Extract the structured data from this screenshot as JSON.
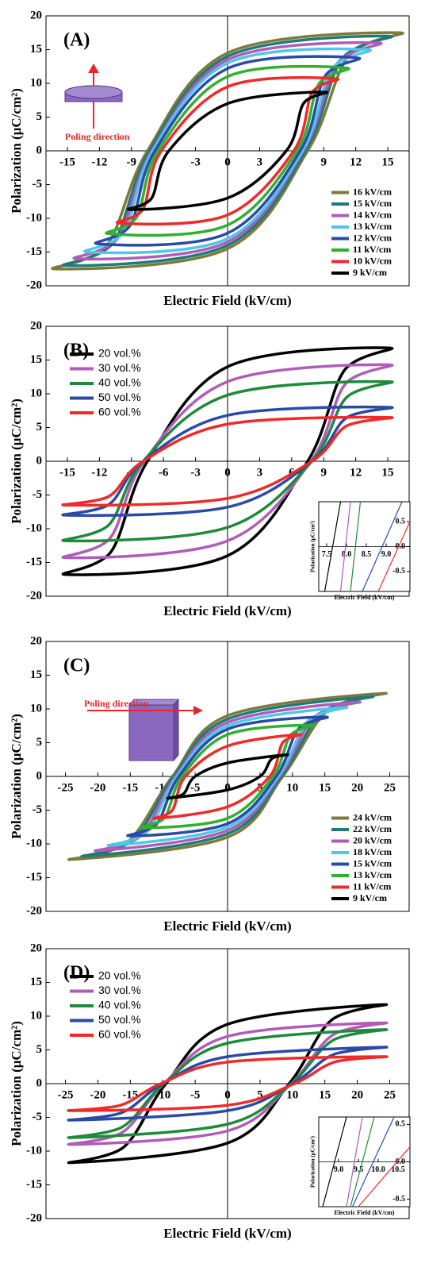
{
  "chart_data": [
    {
      "type": "line",
      "panel_label": "(A)",
      "xlabel": "Electric Field (kV/cm)",
      "ylabel": "Polarization (μC/cm²)",
      "annotation": "Poling direction",
      "legend": "lower right",
      "xlim": [
        -17,
        17
      ],
      "ylim": [
        -20,
        20
      ],
      "xticks": [
        -15,
        -12,
        -9,
        -3,
        0,
        3,
        9,
        12,
        15
      ],
      "yticks": [
        -20,
        -15,
        -10,
        -5,
        0,
        5,
        10,
        15,
        20
      ],
      "series": [
        {
          "name": "16 kV/cm",
          "color": "#7d7a3a",
          "x": [
            -16,
            0,
            7.5,
            11.3,
            16,
            0,
            -7.5,
            -11.3
          ],
          "values": [
            -17.5,
            -14.5,
            0,
            14,
            17.5,
            14.5,
            0,
            -14
          ]
        },
        {
          "name": "15 kV/cm",
          "color": "#1f7a7a",
          "x": [
            -15,
            0,
            7.3,
            10.7,
            15,
            0,
            -7.3,
            -10.7
          ],
          "values": [
            -17,
            -14,
            0,
            13.6,
            17,
            14,
            0,
            -13.6
          ]
        },
        {
          "name": "14 kV/cm",
          "color": "#b05cb8",
          "x": [
            -14,
            0,
            7.1,
            10.2,
            14,
            0,
            -7.1,
            -10.2
          ],
          "values": [
            -16,
            -13.5,
            0,
            12.8,
            16,
            13.5,
            0,
            -12.8
          ]
        },
        {
          "name": "13 kV/cm",
          "color": "#4fc8e8",
          "x": [
            -13,
            0,
            7,
            9.7,
            13,
            0,
            -7,
            -9.7
          ],
          "values": [
            -15,
            -13,
            0,
            12,
            15,
            13,
            0,
            -12
          ]
        },
        {
          "name": "12 kV/cm",
          "color": "#2a4aa8",
          "x": [
            -12,
            0,
            6.8,
            9.1,
            12,
            0,
            -6.8,
            -9.1
          ],
          "values": [
            -13.8,
            -12.2,
            0,
            11,
            13.8,
            12.2,
            0,
            -11
          ]
        },
        {
          "name": "11 kV/cm",
          "color": "#2fb02f",
          "x": [
            -11,
            0,
            6.5,
            8.5,
            11,
            0,
            -6.5,
            -8.5
          ],
          "values": [
            -12.3,
            -11,
            0,
            9.8,
            12.3,
            11,
            0,
            -9.8
          ]
        },
        {
          "name": "10 kV/cm",
          "color": "#f02a2a",
          "x": [
            -10,
            0,
            6.2,
            7.9,
            10,
            0,
            -6.2,
            -7.9
          ],
          "values": [
            -10.7,
            -9.5,
            0,
            8.6,
            10.7,
            9.5,
            0,
            -8.6
          ]
        },
        {
          "name": "9 kV/cm",
          "color": "#000000",
          "x": [
            -9,
            0,
            5.5,
            7.1,
            9,
            0,
            -5.5,
            -7.1
          ],
          "values": [
            -8.7,
            -7,
            0,
            7,
            8.7,
            7,
            0,
            -7
          ]
        }
      ]
    },
    {
      "type": "line",
      "panel_label": "(B)",
      "xlabel": "Electric Field (kV/cm)",
      "ylabel": "Polarization (μC/cm²)",
      "legend": "upper left",
      "xlim": [
        -17,
        17
      ],
      "ylim": [
        -20,
        20
      ],
      "xticks": [
        -15,
        -12,
        -9,
        -6,
        -3,
        0,
        3,
        6,
        9,
        12,
        15
      ],
      "yticks": [
        -20,
        -15,
        -10,
        -5,
        0,
        5,
        10,
        15,
        20
      ],
      "series": [
        {
          "name": "20 vol.%",
          "color": "#000000",
          "x": [
            -15,
            0,
            7.5,
            10.9,
            15,
            0,
            -7.5,
            -10.9
          ],
          "values": [
            -16.8,
            -14,
            0,
            13.4,
            16.8,
            14,
            0,
            -13.4
          ]
        },
        {
          "name": "30 vol.%",
          "color": "#b05cb8",
          "x": [
            -15,
            0,
            7.8,
            11,
            15,
            0,
            -7.8,
            -11
          ],
          "values": [
            -14.3,
            -11.8,
            0,
            11.4,
            14.3,
            11.8,
            0,
            -11.4
          ]
        },
        {
          "name": "40 vol.%",
          "color": "#1f8a3a",
          "x": [
            -15,
            0,
            7.9,
            11.1,
            15,
            0,
            -7.9,
            -11.1
          ],
          "values": [
            -11.8,
            -9.8,
            0,
            9.4,
            11.8,
            9.8,
            0,
            -9.4
          ]
        },
        {
          "name": "50 vol.%",
          "color": "#2a4aa8",
          "x": [
            -15,
            0,
            7.9,
            11.1,
            15,
            0,
            -7.9,
            -11.1
          ],
          "values": [
            -8,
            -6.8,
            0,
            6.4,
            8,
            6.8,
            0,
            -6.4
          ]
        },
        {
          "name": "60 vol.%",
          "color": "#f02a2a",
          "x": [
            -15,
            0,
            7.9,
            11.1,
            15,
            0,
            -7.9,
            -11.1
          ],
          "values": [
            -6.5,
            -5.5,
            0,
            5.2,
            6.5,
            5.5,
            0,
            -5.2
          ]
        }
      ],
      "inset": {
        "xlabel": "Electric Field (kV/cm)",
        "ylabel": "Polarization (μC/cm²)",
        "xlim": [
          7.3,
          9.6
        ],
        "ylim": [
          -0.9,
          0.9
        ],
        "xticks": [
          7.5,
          {
            "value": 8,
            "label": "8.0"
          },
          8.5,
          {
            "value": 9,
            "label": "9.0"
          }
        ],
        "yticks": [
          -0.5,
          {
            "value": 0,
            "label": "0.0"
          },
          0.5
        ],
        "series": [
          {
            "color": "#000000",
            "x": [
              7.45,
              7.85
            ],
            "values": [
              -0.9,
              0.9
            ]
          },
          {
            "color": "#b05cb8",
            "x": [
              7.85,
              8.1
            ],
            "values": [
              -0.9,
              0.9
            ]
          },
          {
            "color": "#1f8a3a",
            "x": [
              8.1,
              8.35
            ],
            "values": [
              -0.9,
              0.9
            ]
          },
          {
            "color": "#2a4aa8",
            "x": [
              8.4,
              9.4
            ],
            "values": [
              -0.9,
              0.9
            ]
          },
          {
            "color": "#f02a2a",
            "x": [
              8.8,
              9.6
            ],
            "values": [
              -0.9,
              0.5
            ]
          }
        ]
      }
    },
    {
      "type": "line",
      "panel_label": "(C)",
      "xlabel": "Electric Field (kV/cm)",
      "ylabel": "Polarization (μC/cm²)",
      "annotation": "Poling direction",
      "legend": "lower right",
      "xlim": [
        -28,
        28
      ],
      "ylim": [
        -20,
        20
      ],
      "xticks": [
        -25,
        -20,
        -15,
        -10,
        -5,
        0,
        5,
        10,
        15,
        20,
        25
      ],
      "yticks": [
        -20,
        -15,
        -10,
        -5,
        0,
        5,
        10,
        15,
        20
      ],
      "series": [
        {
          "name": "24 kV/cm",
          "color": "#7d7a3a",
          "x": [
            -24,
            0,
            8.5,
            15.5,
            24,
            0,
            -8.5,
            -15.5
          ],
          "values": [
            -12.3,
            -9,
            0,
            9.8,
            12.3,
            9,
            0,
            -9.8
          ]
        },
        {
          "name": "22 kV/cm",
          "color": "#1f7a7a",
          "x": [
            -22,
            0,
            8.3,
            14.5,
            22,
            0,
            -8.3,
            -14.5
          ],
          "values": [
            -11.8,
            -8.5,
            0,
            9.4,
            11.8,
            8.5,
            0,
            -9.4
          ]
        },
        {
          "name": "20 kV/cm",
          "color": "#b05cb8",
          "x": [
            -20,
            0,
            8,
            13.4,
            20,
            0,
            -8,
            -13.4
          ],
          "values": [
            -11,
            -8,
            0,
            8.8,
            11,
            8,
            0,
            -8.8
          ]
        },
        {
          "name": "18 kV/cm",
          "color": "#4fc8e8",
          "x": [
            -18,
            0,
            7.8,
            12.4,
            18,
            0,
            -7.8,
            -12.4
          ],
          "values": [
            -10.2,
            -7.5,
            0,
            8.2,
            10.2,
            7.5,
            0,
            -8.2
          ]
        },
        {
          "name": "15 kV/cm",
          "color": "#2a4aa8",
          "x": [
            -15,
            0,
            7.5,
            10.9,
            15,
            0,
            -7.5,
            -10.9
          ],
          "values": [
            -8.8,
            -7,
            0,
            7,
            8.8,
            7,
            0,
            -7
          ]
        },
        {
          "name": "13 kV/cm",
          "color": "#2fb02f",
          "x": [
            -13,
            0,
            7,
            9.7,
            13,
            0,
            -7,
            -9.7
          ],
          "values": [
            -7.6,
            -6.2,
            0,
            6.1,
            7.6,
            6.2,
            0,
            -6.1
          ]
        },
        {
          "name": "11 kV/cm",
          "color": "#f02a2a",
          "x": [
            -11,
            0,
            6.5,
            8.5,
            11,
            0,
            -6.5,
            -8.5
          ],
          "values": [
            -6.2,
            -4.5,
            0,
            5,
            6.2,
            4.5,
            0,
            -5
          ]
        },
        {
          "name": "9 kV/cm",
          "color": "#000000",
          "x": [
            -9,
            0,
            5,
            6.8,
            9,
            0,
            -5,
            -6.8
          ],
          "values": [
            -3.2,
            -2,
            0,
            2.6,
            3.2,
            2,
            0,
            -2.6
          ]
        }
      ]
    },
    {
      "type": "line",
      "panel_label": "(D)",
      "xlabel": "Electric Field (kV/cm)",
      "ylabel": "Polarization (μC/cm²)",
      "legend": "upper left",
      "xlim": [
        -28,
        28
      ],
      "ylim": [
        -20,
        20
      ],
      "xticks": [
        -25,
        -20,
        -15,
        -10,
        -5,
        0,
        5,
        10,
        15,
        20,
        25
      ],
      "yticks": [
        -20,
        -15,
        -10,
        -5,
        0,
        5,
        10,
        15,
        20
      ],
      "series": [
        {
          "name": "20 vol.%",
          "color": "#000000",
          "x": [
            -24,
            0,
            9.5,
            16,
            24,
            0,
            -9.5,
            -16
          ],
          "values": [
            -11.7,
            -8.8,
            0,
            9.4,
            11.7,
            8.8,
            0,
            -9.4
          ]
        },
        {
          "name": "30 vol.%",
          "color": "#b05cb8",
          "x": [
            -24,
            0,
            9.8,
            16.2,
            24,
            0,
            -9.8,
            -16.2
          ],
          "values": [
            -9,
            -7,
            0,
            7.2,
            9,
            7,
            0,
            -7.2
          ]
        },
        {
          "name": "40 vol.%",
          "color": "#1f8a3a",
          "x": [
            -24,
            0,
            9.8,
            16.2,
            24,
            0,
            -9.8,
            -16.2
          ],
          "values": [
            -8,
            -6,
            0,
            6.4,
            8,
            6,
            0,
            -6.4
          ]
        },
        {
          "name": "50 vol.%",
          "color": "#2a4aa8",
          "x": [
            -24,
            0,
            10,
            16.3,
            24,
            0,
            -10,
            -16.3
          ],
          "values": [
            -5.4,
            -4,
            0,
            4.3,
            5.4,
            4,
            0,
            -4.3
          ]
        },
        {
          "name": "60 vol.%",
          "color": "#f02a2a",
          "x": [
            -24,
            0,
            10.3,
            16.5,
            24,
            0,
            -10.3,
            -16.5
          ],
          "values": [
            -4,
            -3.2,
            0,
            3.2,
            4,
            3.2,
            0,
            -3.2
          ]
        }
      ],
      "inset": {
        "xlabel": "Electric Field (kV/cm)",
        "ylabel": "Polarization (μC/cm²)",
        "xlim": [
          8.5,
          10.8
        ],
        "ylim": [
          -0.6,
          0.6
        ],
        "xticks": [
          {
            "value": 9,
            "label": "9.0"
          },
          9.5,
          {
            "value": 10,
            "label": "10.0"
          },
          10.5
        ],
        "yticks": [
          -0.5,
          {
            "value": 0,
            "label": "0.0"
          },
          0.5
        ],
        "series": [
          {
            "color": "#000000",
            "x": [
              8.6,
              9.2
            ],
            "values": [
              -0.6,
              0.6
            ]
          },
          {
            "color": "#b05cb8",
            "x": [
              9.2,
              9.6
            ],
            "values": [
              -0.6,
              0.6
            ]
          },
          {
            "color": "#1f8a3a",
            "x": [
              9.3,
              9.9
            ],
            "values": [
              -0.6,
              0.6
            ]
          },
          {
            "color": "#2a4aa8",
            "x": [
              9.35,
              10.4
            ],
            "values": [
              -0.6,
              0.6
            ]
          },
          {
            "color": "#f02a2a",
            "x": [
              9.5,
              10.8
            ],
            "values": [
              -0.6,
              0.2
            ]
          }
        ]
      }
    }
  ]
}
